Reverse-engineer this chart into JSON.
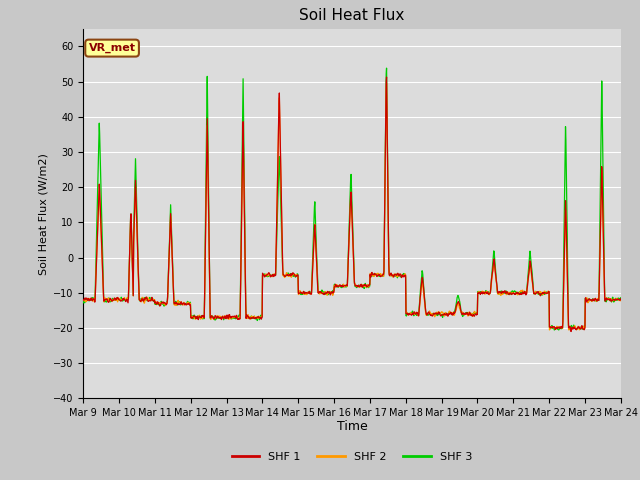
{
  "title": "Soil Heat Flux",
  "xlabel": "Time",
  "ylabel": "Soil Heat Flux (W/m2)",
  "ylim": [
    -40,
    65
  ],
  "yticks": [
    -40,
    -30,
    -20,
    -10,
    0,
    10,
    20,
    30,
    40,
    50,
    60
  ],
  "x_labels": [
    "Mar 9",
    "Mar 10",
    "Mar 11",
    "Mar 12",
    "Mar 13",
    "Mar 14",
    "Mar 15",
    "Mar 16",
    "Mar 17",
    "Mar 18",
    "Mar 19",
    "Mar 20",
    "Mar 21",
    "Mar 22",
    "Mar 23",
    "Mar 24"
  ],
  "colors": {
    "SHF1": "#cc0000",
    "SHF2": "#ff9900",
    "SHF3": "#00cc00"
  },
  "bg_color": "#dcdcdc",
  "grid_color": "#ffffff",
  "fig_bg": "#c8c8c8",
  "annotation_text": "VR_met",
  "annotation_fg": "#8b0000",
  "annotation_bg": "#ffff99",
  "annotation_edge": "#8b4513",
  "legend_labels": [
    "SHF 1",
    "SHF 2",
    "SHF 3"
  ],
  "n_days": 15,
  "n_per_day": 96
}
